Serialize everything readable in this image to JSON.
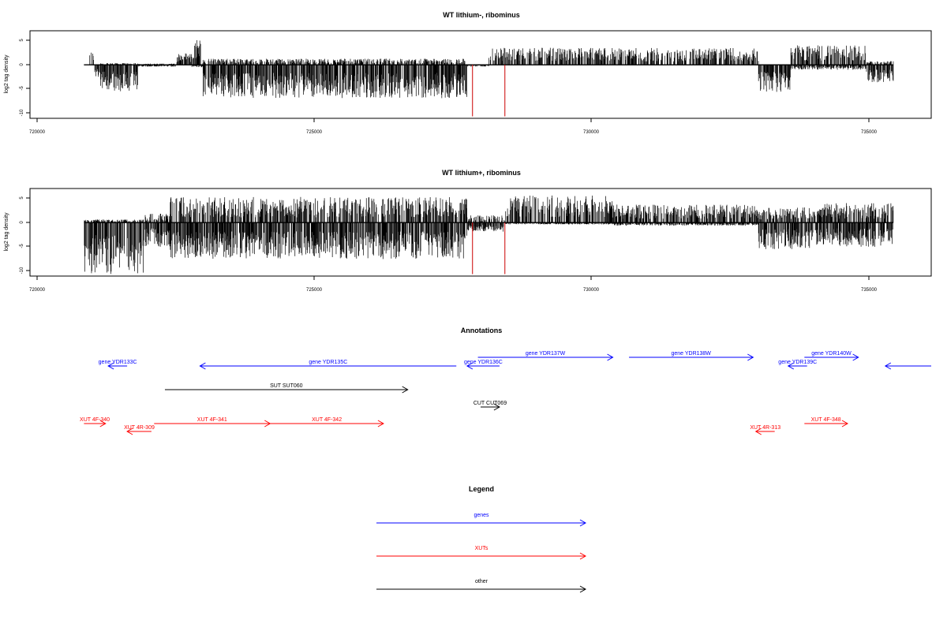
{
  "chart_data": [
    {
      "type": "bar",
      "title": "WT lithium-, ribominus",
      "ylabel": "log2 tag density",
      "xlim": [
        719500,
        736200
      ],
      "ylim": [
        -11,
        7
      ],
      "x_ticks": [
        720000,
        725000,
        730000,
        735000
      ],
      "y_ticks": [
        -10,
        -5,
        0,
        5
      ],
      "data_range": [
        720500,
        735500
      ],
      "markers": [
        727700,
        728300
      ],
      "marker_color": "#cc0000",
      "profile": {
        "segments": [
          {
            "from": 720500,
            "to": 720600,
            "up": 0.0,
            "down": 0.0
          },
          {
            "from": 720600,
            "to": 720700,
            "up": 2.2,
            "down": 0.0
          },
          {
            "from": 720700,
            "to": 720800,
            "up": 0.0,
            "down": 2.0
          },
          {
            "from": 720800,
            "to": 721500,
            "up": 0.3,
            "down": 4.5
          },
          {
            "from": 721500,
            "to": 722200,
            "up": 0.2,
            "down": 0.3
          },
          {
            "from": 722200,
            "to": 722500,
            "up": 2.0,
            "down": 0.0
          },
          {
            "from": 722500,
            "to": 722700,
            "up": 4.2,
            "down": 0.5
          },
          {
            "from": 722700,
            "to": 727600,
            "up": 1.0,
            "down": 5.5
          },
          {
            "from": 727600,
            "to": 728000,
            "up": 0.0,
            "down": 0.3
          },
          {
            "from": 728000,
            "to": 733000,
            "up": 2.8,
            "down": 0.0
          },
          {
            "from": 733000,
            "to": 733600,
            "up": 0.0,
            "down": 4.5
          },
          {
            "from": 733600,
            "to": 735000,
            "up": 3.2,
            "down": 0.8
          },
          {
            "from": 735000,
            "to": 735500,
            "up": 0.6,
            "down": 3.0
          }
        ]
      }
    },
    {
      "type": "bar",
      "title": "WT lithium+, ribominus",
      "ylabel": "log2 tag density",
      "xlim": [
        719500,
        736200
      ],
      "ylim": [
        -11,
        7
      ],
      "x_ticks": [
        720000,
        725000,
        730000,
        735000
      ],
      "y_ticks": [
        -10,
        -5,
        0,
        5
      ],
      "data_range": [
        720500,
        735500
      ],
      "markers": [
        727700,
        728300
      ],
      "marker_color": "#cc0000",
      "profile": {
        "segments": [
          {
            "from": 720500,
            "to": 721600,
            "up": 0.5,
            "down": 8.5
          },
          {
            "from": 721600,
            "to": 722100,
            "up": 1.5,
            "down": 4.0
          },
          {
            "from": 722100,
            "to": 727600,
            "up": 4.2,
            "down": 6.0
          },
          {
            "from": 727600,
            "to": 728300,
            "up": 1.2,
            "down": 1.5
          },
          {
            "from": 728300,
            "to": 730300,
            "up": 4.5,
            "down": 0.3
          },
          {
            "from": 730300,
            "to": 733000,
            "up": 3.0,
            "down": 0.5
          },
          {
            "from": 733000,
            "to": 734200,
            "up": 2.5,
            "down": 4.5
          },
          {
            "from": 734200,
            "to": 735500,
            "up": 3.2,
            "down": 4.0
          }
        ]
      }
    }
  ],
  "annotations": {
    "title": "Annotations",
    "xlim": [
      719500,
      736200
    ],
    "features": [
      {
        "label": "gene YDR133C",
        "start": 721300,
        "end": 720950,
        "row": 0,
        "category": "gene"
      },
      {
        "label": "gene YDR135C",
        "start": 727400,
        "end": 722650,
        "row": 0,
        "category": "gene"
      },
      {
        "label": "gene YDR136C",
        "start": 728200,
        "end": 727600,
        "row": 0,
        "category": "gene"
      },
      {
        "label": "gene YDR137W",
        "start": 727800,
        "end": 730300,
        "row": 1,
        "category": "gene"
      },
      {
        "label": "gene YDR138W",
        "start": 730600,
        "end": 732900,
        "row": 1,
        "category": "gene"
      },
      {
        "label": "gene YDR139C",
        "start": 733900,
        "end": 733550,
        "row": 0,
        "category": "gene"
      },
      {
        "label": "gene YDR140W",
        "start": 733850,
        "end": 734850,
        "row": 1,
        "category": "gene"
      },
      {
        "label": "",
        "start": 736200,
        "end": 735350,
        "row": 0,
        "category": "gene"
      },
      {
        "label": "SUT SUT060",
        "start": 722000,
        "end": 726500,
        "row": 2,
        "category": "other"
      },
      {
        "label": "CUT CUT069",
        "start": 727850,
        "end": 728200,
        "row": 3,
        "category": "other"
      },
      {
        "label": "XUT 4F-340",
        "start": 720500,
        "end": 720900,
        "row": 4,
        "category": "XUT"
      },
      {
        "label": "XUT 4F-341",
        "start": 721800,
        "end": 723950,
        "row": 4,
        "category": "XUT"
      },
      {
        "label": "XUT 4F-342",
        "start": 723950,
        "end": 726050,
        "row": 4,
        "category": "XUT"
      },
      {
        "label": "XUT 4R-309",
        "start": 721750,
        "end": 721300,
        "row": 5,
        "category": "XUT"
      },
      {
        "label": "XUT 4F-348",
        "start": 733850,
        "end": 734650,
        "row": 4,
        "category": "XUT"
      },
      {
        "label": "XUT 4R-313",
        "start": 733300,
        "end": 732950,
        "row": 5,
        "category": "XUT"
      }
    ]
  },
  "legend": {
    "title": "Legend",
    "items": [
      {
        "label": "genes",
        "color": "#0000ff"
      },
      {
        "label": "XUTs",
        "color": "#ff0000"
      },
      {
        "label": "other",
        "color": "#000000"
      }
    ]
  },
  "colors": {
    "gene": "#0000ff",
    "XUT": "#ff0000",
    "other": "#000000",
    "marker": "#cc0000"
  }
}
